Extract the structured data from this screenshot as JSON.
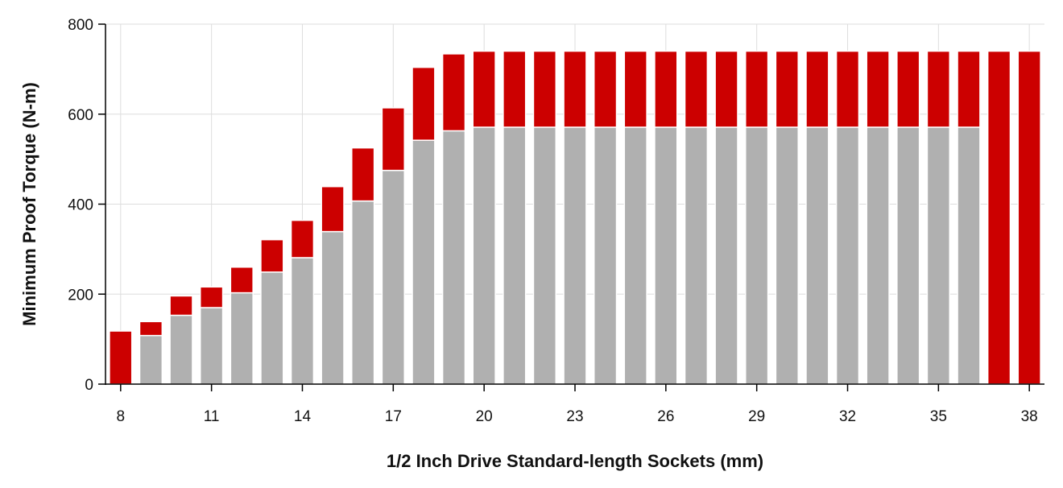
{
  "chart_data": {
    "type": "bar",
    "stacked": true,
    "title": "",
    "xlabel": "1/2 Inch Drive Standard-length Sockets (mm)",
    "ylabel": "Minimum Proof Torque (N-m)",
    "ylim": [
      0,
      800
    ],
    "yticks": [
      0,
      200,
      400,
      600,
      800
    ],
    "xtick_labels": [
      "8",
      "11",
      "14",
      "17",
      "20",
      "23",
      "26",
      "29",
      "32",
      "35",
      "38"
    ],
    "grid": true,
    "legend": "none",
    "colors": {
      "lower": "#b0b0b0",
      "upper": "#cc0000",
      "grid": "#dddddd",
      "axis": "#000000"
    },
    "categories": [
      8,
      9,
      10,
      11,
      12,
      13,
      14,
      15,
      16,
      17,
      18,
      19,
      20,
      21,
      22,
      23,
      24,
      25,
      26,
      27,
      28,
      29,
      30,
      31,
      32,
      33,
      34,
      35,
      36,
      37,
      38
    ],
    "series": [
      {
        "values": [
          0,
          108,
          153,
          170,
          203,
          249,
          281,
          339,
          407,
          475,
          542,
          563,
          571,
          571,
          571,
          571,
          571,
          571,
          571,
          571,
          571,
          571,
          571,
          571,
          571,
          571,
          571,
          571,
          571,
          0,
          0
        ]
      },
      {
        "values": [
          118,
          31,
          43,
          46,
          57,
          72,
          83,
          100,
          118,
          139,
          162,
          171,
          169,
          169,
          169,
          169,
          169,
          169,
          169,
          169,
          169,
          169,
          169,
          169,
          169,
          169,
          169,
          169,
          169,
          740,
          740
        ]
      }
    ]
  }
}
